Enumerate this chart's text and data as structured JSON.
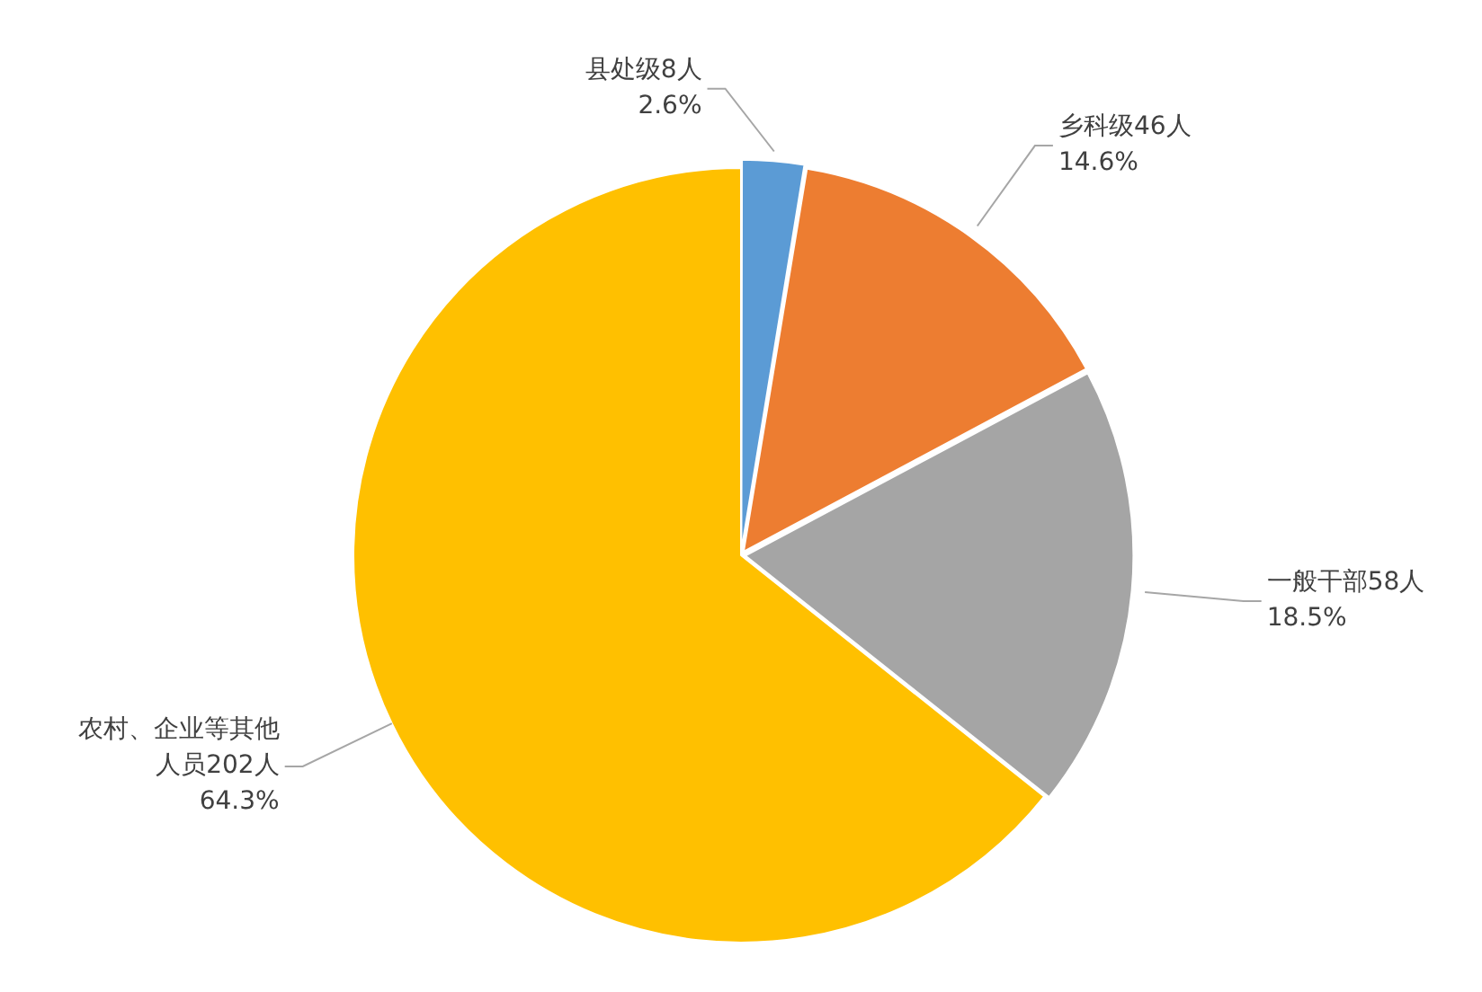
{
  "chart_data": {
    "type": "pie",
    "categories": [
      "县处级8人",
      "乡科级46人",
      "一般干部58人",
      "农村、企业等其他人员202人"
    ],
    "values": [
      2.6,
      14.6,
      18.5,
      64.3
    ],
    "colors": [
      "#5b9bd5",
      "#ed7d31",
      "#a5a5a5",
      "#ffc000"
    ],
    "value_labels": [
      "2.6%",
      "14.6%",
      "18.5%",
      "64.3%"
    ],
    "legend": false
  }
}
